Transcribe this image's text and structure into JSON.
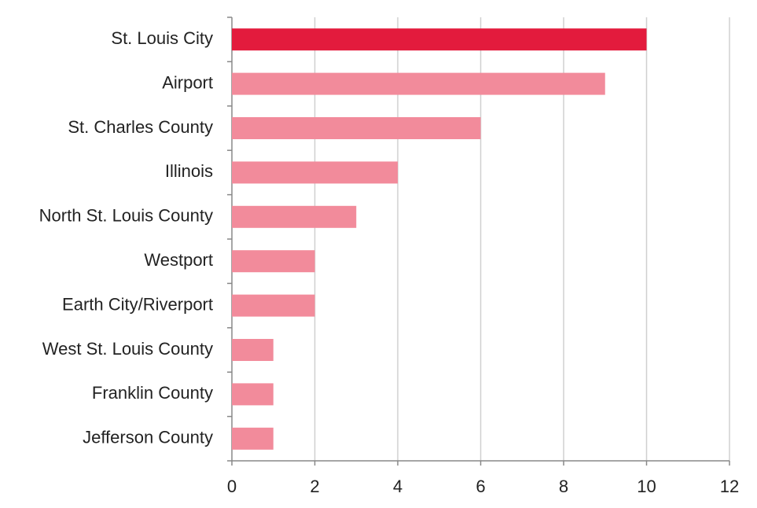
{
  "chart_data": {
    "type": "barh",
    "categories": [
      "St. Louis City",
      "Airport",
      "St. Charles County",
      "Illinois",
      "North St. Louis County",
      "Westport",
      "Earth City/Riverport",
      "West St. Louis County",
      "Franklin County",
      "Jefferson County"
    ],
    "values": [
      10,
      9,
      6,
      4,
      3,
      2,
      2,
      1,
      1,
      1
    ],
    "colors": [
      "#e31b3d",
      "#f28b9b",
      "#f28b9b",
      "#f28b9b",
      "#f28b9b",
      "#f28b9b",
      "#f28b9b",
      "#f28b9b",
      "#f28b9b",
      "#f28b9b"
    ],
    "xlim": [
      0,
      12
    ],
    "xticks": [
      0,
      2,
      4,
      6,
      8,
      10,
      12
    ],
    "grid": true
  }
}
